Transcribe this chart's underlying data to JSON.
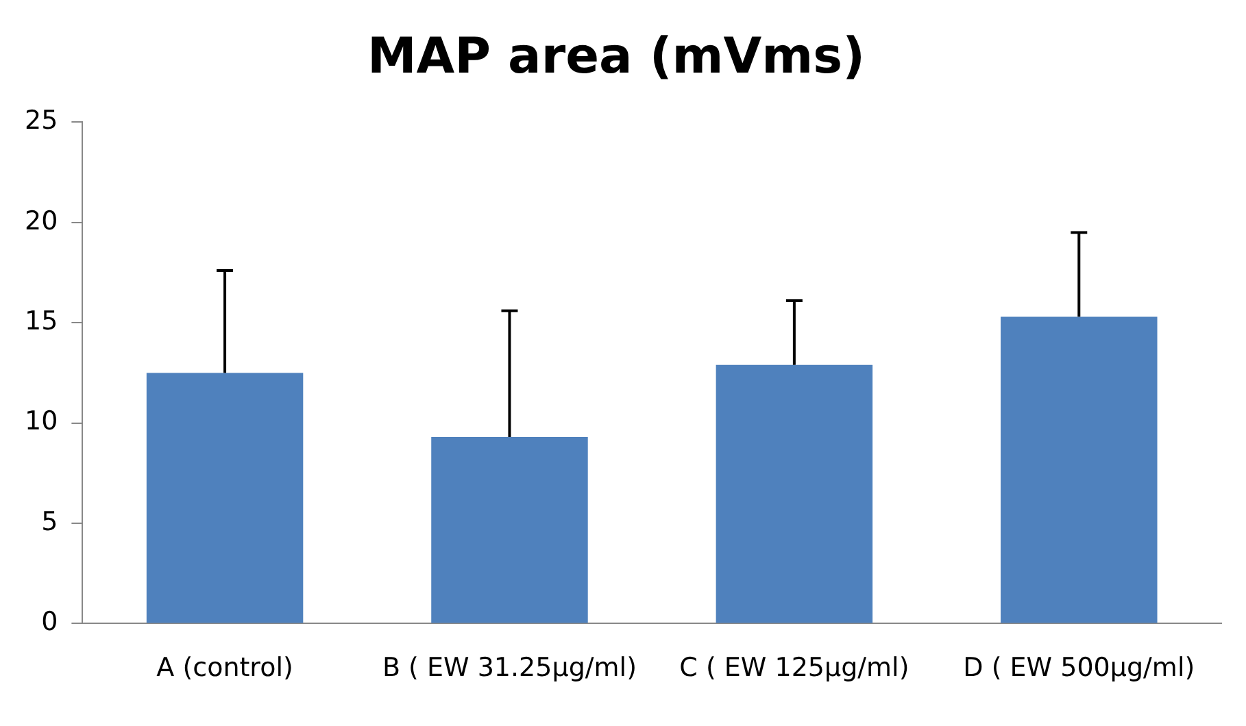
{
  "chart_data": {
    "type": "bar",
    "title": "MAP area (mVms)",
    "categories": [
      "A (control)",
      "B ( EW 31.25µg/ml)",
      "C ( EW 125µg/ml)",
      "D ( EW 500µg/ml)"
    ],
    "values": [
      12.5,
      9.3,
      12.9,
      15.3
    ],
    "errors": [
      [
        12.5,
        17.6
      ],
      [
        9.3,
        15.6
      ],
      [
        12.9,
        16.1
      ],
      [
        15.3,
        19.5
      ]
    ],
    "color": "#4f81bd",
    "ylim": [
      0,
      25
    ],
    "yticks": [
      0,
      5,
      10,
      15,
      20,
      25
    ],
    "grid": false,
    "legend": false
  }
}
